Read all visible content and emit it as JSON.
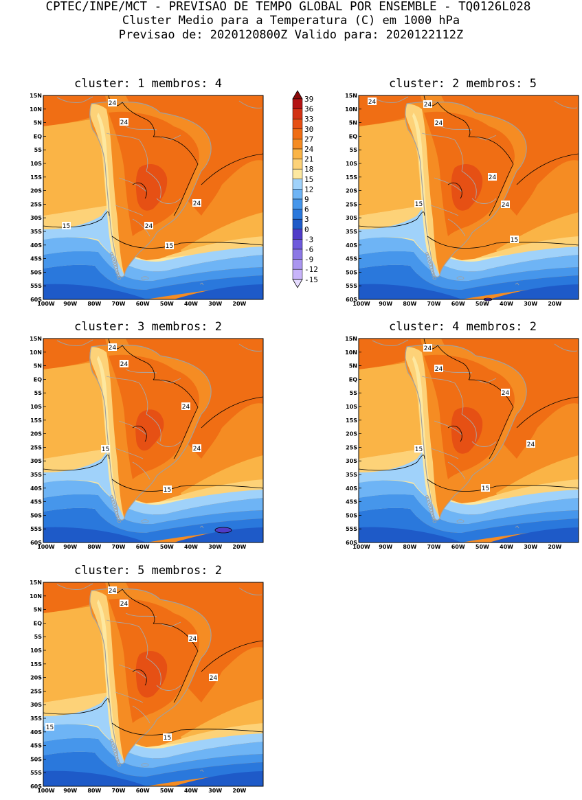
{
  "header": {
    "line1": "CPTEC/INPE/MCT - PREVISAO DE TEMPO GLOBAL POR ENSEMBLE - TQ0126L028",
    "line2": "Cluster Medio para a Temperatura (C) em 1000 hPa",
    "line3": "Previsao de: 2020120800Z   Valido para: 2020122112Z"
  },
  "axis": {
    "lat_labels": [
      "15N",
      "10N",
      "5N",
      "EQ",
      "5S",
      "10S",
      "15S",
      "20S",
      "25S",
      "30S",
      "35S",
      "40S",
      "45S",
      "50S",
      "55S",
      "60S"
    ],
    "lon_labels": [
      "100W",
      "90W",
      "80W",
      "70W",
      "60W",
      "50W",
      "40W",
      "30W",
      "20W"
    ]
  },
  "colorbar": {
    "labels": [
      "39",
      "36",
      "33",
      "30",
      "27",
      "24",
      "21",
      "18",
      "15",
      "12",
      "9",
      "6",
      "3",
      "0",
      "-3",
      "-6",
      "-9",
      "-12",
      "-15"
    ],
    "colors": [
      "#8c0a0a",
      "#b41414",
      "#d23214",
      "#e65014",
      "#f06e14",
      "#f58c23",
      "#fab446",
      "#fdd278",
      "#fde8a0",
      "#a0d2fa",
      "#6eb4f5",
      "#4696eb",
      "#2a78dc",
      "#1e5ac8",
      "#503cc8",
      "#6e5adc",
      "#8c78e6",
      "#aa96f0",
      "#c8b4fa",
      "#e6dcff"
    ]
  },
  "panels": [
    {
      "title": "cluster: 1   membros: 4",
      "labels": [
        "24",
        "24",
        "24",
        "24",
        "15",
        "15"
      ]
    },
    {
      "title": "cluster: 2   membros: 5",
      "labels": [
        "24",
        "24",
        "24",
        "24",
        "24",
        "15",
        "15"
      ]
    },
    {
      "title": "cluster: 3   membros: 2",
      "labels": [
        "24",
        "24",
        "24",
        "24",
        "15",
        "15"
      ]
    },
    {
      "title": "cluster: 4   membros: 2",
      "labels": [
        "24",
        "24",
        "24",
        "24",
        "15",
        "15"
      ]
    },
    {
      "title": "cluster: 5   membros: 2",
      "labels": [
        "24",
        "24",
        "24",
        "24",
        "15",
        "15"
      ]
    }
  ]
}
